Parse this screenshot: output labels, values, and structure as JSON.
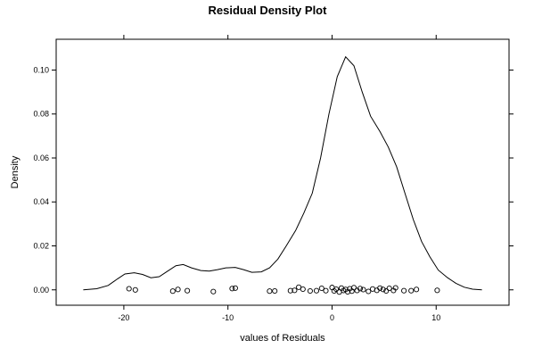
{
  "chart_data": {
    "type": "line",
    "title": "Residual Density Plot",
    "xlabel": "values of Residuals",
    "ylabel": "Density",
    "xlim": [
      -26.5,
      17
    ],
    "ylim": [
      -0.007,
      0.114
    ],
    "xticks": [
      -20,
      -10,
      0,
      10
    ],
    "xtick_labels": [
      "-20",
      "-10",
      "0",
      "10"
    ],
    "yticks": [
      0.0,
      0.02,
      0.04,
      0.06,
      0.08,
      0.1
    ],
    "ytick_labels": [
      "0.00",
      "0.02",
      "0.04",
      "0.06",
      "0.08",
      "0.10"
    ],
    "grid": false,
    "legend": "none",
    "line_color": "#000000",
    "series": [
      {
        "x": [
          -23.9,
          -22.6,
          -21.5,
          -20.6,
          -19.9,
          -19.0,
          -18.2,
          -17.4,
          -16.6,
          -15.8,
          -15.0,
          -14.3,
          -13.5,
          -12.6,
          -11.8,
          -11.0,
          -10.2,
          -9.3,
          -8.5,
          -7.7,
          -6.8,
          -6.0,
          -5.2,
          -4.4,
          -3.5,
          -2.7,
          -1.9,
          -1.1,
          -0.3,
          0.5,
          1.3,
          2.1,
          2.9,
          3.7,
          4.6,
          5.4,
          6.2,
          7.0,
          7.8,
          8.6,
          9.4,
          10.2,
          11.1,
          11.9,
          12.7,
          13.5,
          14.4
        ],
        "y": [
          0.0,
          0.0005,
          0.002,
          0.005,
          0.0072,
          0.0078,
          0.007,
          0.0055,
          0.006,
          0.0085,
          0.011,
          0.0115,
          0.01,
          0.0088,
          0.0085,
          0.0092,
          0.01,
          0.0102,
          0.0092,
          0.008,
          0.0082,
          0.01,
          0.014,
          0.02,
          0.027,
          0.035,
          0.044,
          0.06,
          0.08,
          0.097,
          0.106,
          0.102,
          0.09,
          0.079,
          0.072,
          0.065,
          0.056,
          0.044,
          0.032,
          0.022,
          0.015,
          0.009,
          0.0055,
          0.003,
          0.0012,
          0.0003,
          0.0
        ]
      }
    ],
    "rug_points": [
      {
        "x": -19.5,
        "y": 0.0005
      },
      {
        "x": -18.9,
        "y": 0.0
      },
      {
        "x": -15.3,
        "y": -0.0006
      },
      {
        "x": -14.8,
        "y": 0.0002
      },
      {
        "x": -13.9,
        "y": -0.0004
      },
      {
        "x": -11.4,
        "y": -0.0008
      },
      {
        "x": -9.6,
        "y": 0.0006
      },
      {
        "x": -9.3,
        "y": 0.0008
      },
      {
        "x": -6.0,
        "y": -0.0006
      },
      {
        "x": -5.5,
        "y": -0.0005
      },
      {
        "x": -4.0,
        "y": -0.0004
      },
      {
        "x": -3.6,
        "y": -0.0002
      },
      {
        "x": -3.2,
        "y": 0.0012
      },
      {
        "x": -2.8,
        "y": 0.0003
      },
      {
        "x": -2.1,
        "y": -0.0005
      },
      {
        "x": -1.5,
        "y": -0.0004
      },
      {
        "x": -1.0,
        "y": 0.0007
      },
      {
        "x": -0.6,
        "y": -0.0004
      },
      {
        "x": 0.0,
        "y": 0.0011
      },
      {
        "x": 0.2,
        "y": -0.0005
      },
      {
        "x": 0.4,
        "y": 0.0003
      },
      {
        "x": 0.7,
        "y": -0.001
      },
      {
        "x": 0.9,
        "y": 0.0008
      },
      {
        "x": 1.1,
        "y": -0.0003
      },
      {
        "x": 1.3,
        "y": 0.0002
      },
      {
        "x": 1.5,
        "y": -0.0009
      },
      {
        "x": 1.7,
        "y": 0.0005
      },
      {
        "x": 1.9,
        "y": -0.0006
      },
      {
        "x": 2.1,
        "y": 0.001
      },
      {
        "x": 2.4,
        "y": -0.0003
      },
      {
        "x": 2.7,
        "y": 0.0006
      },
      {
        "x": 3.0,
        "y": 0.0001
      },
      {
        "x": 3.5,
        "y": -0.0007
      },
      {
        "x": 3.9,
        "y": 0.0004
      },
      {
        "x": 4.3,
        "y": -0.0002
      },
      {
        "x": 4.6,
        "y": 0.0008
      },
      {
        "x": 4.9,
        "y": 0.0002
      },
      {
        "x": 5.2,
        "y": -0.0005
      },
      {
        "x": 5.5,
        "y": 0.0007
      },
      {
        "x": 5.9,
        "y": -0.0003
      },
      {
        "x": 6.1,
        "y": 0.0009
      },
      {
        "x": 6.9,
        "y": -0.0004
      },
      {
        "x": 7.6,
        "y": -0.0004
      },
      {
        "x": 8.1,
        "y": 0.0002
      },
      {
        "x": 10.1,
        "y": -0.0002
      }
    ]
  }
}
